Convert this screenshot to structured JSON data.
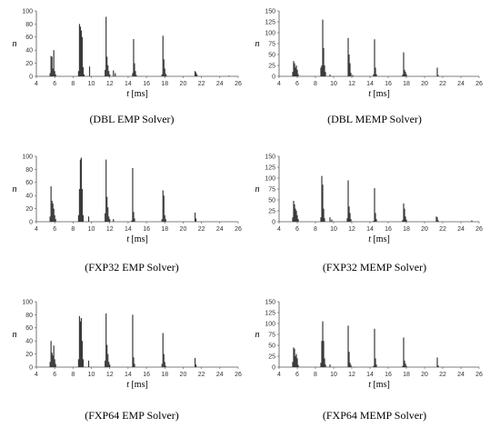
{
  "chart_data": [
    {
      "type": "bar",
      "caption": "(DBL EMP Solver)",
      "xlabel": "t",
      "xunit": "[ms]",
      "ylabel": "n",
      "xlim": [
        4,
        26
      ],
      "xticks": [
        4,
        6,
        8,
        10,
        12,
        14,
        16,
        18,
        20,
        22,
        24,
        26
      ],
      "ylim": [
        0,
        100
      ],
      "yticks": [
        0,
        20,
        40,
        60,
        80,
        100
      ],
      "bars": [
        [
          5.5,
          5
        ],
        [
          5.6,
          31
        ],
        [
          5.7,
          30
        ],
        [
          5.8,
          12
        ],
        [
          5.9,
          40
        ],
        [
          6.0,
          8
        ],
        [
          6.1,
          3
        ],
        [
          8.6,
          8
        ],
        [
          8.7,
          80
        ],
        [
          8.8,
          76
        ],
        [
          8.9,
          70
        ],
        [
          9.0,
          60
        ],
        [
          9.1,
          14
        ],
        [
          9.2,
          3
        ],
        [
          9.8,
          15
        ],
        [
          11.5,
          10
        ],
        [
          11.6,
          91
        ],
        [
          11.7,
          30
        ],
        [
          11.8,
          17
        ],
        [
          11.9,
          8
        ],
        [
          12.0,
          3
        ],
        [
          12.4,
          9
        ],
        [
          12.6,
          5
        ],
        [
          14.5,
          5
        ],
        [
          14.6,
          57
        ],
        [
          14.7,
          20
        ],
        [
          14.8,
          8
        ],
        [
          14.9,
          2
        ],
        [
          17.7,
          3
        ],
        [
          17.8,
          62
        ],
        [
          17.9,
          26
        ],
        [
          18.0,
          12
        ],
        [
          18.1,
          4
        ],
        [
          18.2,
          1
        ],
        [
          21.3,
          8
        ],
        [
          21.4,
          6
        ],
        [
          21.5,
          3
        ],
        [
          25.0,
          1
        ]
      ]
    },
    {
      "type": "bar",
      "caption": "(DBL MEMP Solver)",
      "xlabel": "t",
      "xunit": "[ms]",
      "ylabel": "n",
      "xlim": [
        4,
        26
      ],
      "xticks": [
        4,
        6,
        8,
        10,
        12,
        14,
        16,
        18,
        20,
        22,
        24,
        26
      ],
      "ylim": [
        0,
        150
      ],
      "yticks": [
        0,
        25,
        50,
        75,
        100,
        125,
        150
      ],
      "bars": [
        [
          5.5,
          10
        ],
        [
          5.6,
          35
        ],
        [
          5.7,
          30
        ],
        [
          5.8,
          20
        ],
        [
          5.9,
          25
        ],
        [
          6.0,
          15
        ],
        [
          6.1,
          5
        ],
        [
          8.6,
          20
        ],
        [
          8.7,
          25
        ],
        [
          8.8,
          130
        ],
        [
          8.9,
          65
        ],
        [
          9.0,
          25
        ],
        [
          9.1,
          10
        ],
        [
          9.6,
          4
        ],
        [
          11.6,
          88
        ],
        [
          11.7,
          50
        ],
        [
          11.8,
          30
        ],
        [
          11.9,
          8
        ],
        [
          12.1,
          3
        ],
        [
          14.4,
          5
        ],
        [
          14.5,
          85
        ],
        [
          14.6,
          20
        ],
        [
          14.7,
          5
        ],
        [
          17.6,
          4
        ],
        [
          17.7,
          55
        ],
        [
          17.8,
          15
        ],
        [
          17.9,
          10
        ],
        [
          18.0,
          5
        ],
        [
          21.4,
          20
        ],
        [
          21.5,
          3
        ]
      ]
    },
    {
      "type": "bar",
      "caption": "(FXP32 EMP Solver)",
      "xlabel": "t",
      "xunit": "[ms]",
      "ylabel": "n",
      "xlim": [
        4,
        26
      ],
      "xticks": [
        4,
        6,
        8,
        10,
        12,
        14,
        16,
        18,
        20,
        22,
        24,
        26
      ],
      "ylim": [
        0,
        100
      ],
      "yticks": [
        0,
        20,
        40,
        60,
        80,
        100
      ],
      "bars": [
        [
          5.5,
          8
        ],
        [
          5.6,
          54
        ],
        [
          5.7,
          32
        ],
        [
          5.8,
          28
        ],
        [
          5.9,
          20
        ],
        [
          6.0,
          10
        ],
        [
          6.1,
          4
        ],
        [
          8.6,
          10
        ],
        [
          8.7,
          50
        ],
        [
          8.8,
          95
        ],
        [
          8.9,
          98
        ],
        [
          9.0,
          50
        ],
        [
          9.1,
          10
        ],
        [
          9.7,
          8
        ],
        [
          11.5,
          13
        ],
        [
          11.6,
          95
        ],
        [
          11.7,
          38
        ],
        [
          11.8,
          22
        ],
        [
          11.9,
          8
        ],
        [
          12.0,
          4
        ],
        [
          12.4,
          4
        ],
        [
          14.4,
          2
        ],
        [
          14.5,
          82
        ],
        [
          14.6,
          15
        ],
        [
          14.7,
          5
        ],
        [
          17.7,
          4
        ],
        [
          17.8,
          48
        ],
        [
          17.9,
          40
        ],
        [
          18.0,
          10
        ],
        [
          18.1,
          4
        ],
        [
          21.3,
          14
        ],
        [
          21.4,
          5
        ]
      ]
    },
    {
      "type": "bar",
      "caption": "(FXP32 MEMP Solver)",
      "xlabel": "t",
      "xunit": "[ms]",
      "ylabel": "n",
      "xlim": [
        4,
        26
      ],
      "xticks": [
        4,
        6,
        8,
        10,
        12,
        14,
        16,
        18,
        20,
        22,
        24,
        26
      ],
      "ylim": [
        0,
        150
      ],
      "yticks": [
        0,
        25,
        50,
        75,
        100,
        125,
        150
      ],
      "bars": [
        [
          5.5,
          10
        ],
        [
          5.6,
          48
        ],
        [
          5.7,
          40
        ],
        [
          5.8,
          30
        ],
        [
          5.9,
          25
        ],
        [
          6.0,
          15
        ],
        [
          6.1,
          6
        ],
        [
          8.6,
          10
        ],
        [
          8.7,
          105
        ],
        [
          8.8,
          85
        ],
        [
          8.9,
          30
        ],
        [
          9.0,
          8
        ],
        [
          9.6,
          10
        ],
        [
          9.8,
          5
        ],
        [
          11.5,
          8
        ],
        [
          11.6,
          95
        ],
        [
          11.7,
          35
        ],
        [
          11.8,
          20
        ],
        [
          11.9,
          6
        ],
        [
          14.4,
          2
        ],
        [
          14.5,
          77
        ],
        [
          14.6,
          20
        ],
        [
          14.7,
          6
        ],
        [
          17.6,
          4
        ],
        [
          17.7,
          42
        ],
        [
          17.8,
          30
        ],
        [
          17.9,
          12
        ],
        [
          18.0,
          5
        ],
        [
          21.3,
          12
        ],
        [
          21.4,
          10
        ],
        [
          21.5,
          3
        ],
        [
          25.2,
          3
        ]
      ]
    },
    {
      "type": "bar",
      "caption": "(FXP64 EMP Solver)",
      "xlabel": "t",
      "xunit": "[ms]",
      "ylabel": "n",
      "xlim": [
        4,
        26
      ],
      "xticks": [
        4,
        6,
        8,
        10,
        12,
        14,
        16,
        18,
        20,
        22,
        24,
        26
      ],
      "ylim": [
        0,
        100
      ],
      "yticks": [
        0,
        20,
        40,
        60,
        80,
        100
      ],
      "bars": [
        [
          5.5,
          8
        ],
        [
          5.6,
          40
        ],
        [
          5.7,
          22
        ],
        [
          5.8,
          18
        ],
        [
          5.9,
          33
        ],
        [
          6.0,
          12
        ],
        [
          6.1,
          5
        ],
        [
          8.6,
          12
        ],
        [
          8.7,
          78
        ],
        [
          8.8,
          70
        ],
        [
          8.9,
          75
        ],
        [
          9.0,
          40
        ],
        [
          9.1,
          12
        ],
        [
          9.7,
          10
        ],
        [
          11.5,
          10
        ],
        [
          11.6,
          82
        ],
        [
          11.7,
          34
        ],
        [
          11.8,
          20
        ],
        [
          11.9,
          8
        ],
        [
          12.0,
          4
        ],
        [
          14.5,
          80
        ],
        [
          14.6,
          15
        ],
        [
          14.7,
          5
        ],
        [
          17.7,
          5
        ],
        [
          17.8,
          52
        ],
        [
          17.9,
          20
        ],
        [
          18.0,
          8
        ],
        [
          18.1,
          2
        ],
        [
          21.3,
          14
        ],
        [
          21.4,
          4
        ]
      ]
    },
    {
      "type": "bar",
      "caption": "(FXP64 MEMP Solver)",
      "xlabel": "t",
      "xunit": "[ms]",
      "ylabel": "n",
      "xlim": [
        4,
        26
      ],
      "xticks": [
        4,
        6,
        8,
        10,
        12,
        14,
        16,
        18,
        20,
        22,
        24,
        26
      ],
      "ylim": [
        0,
        150
      ],
      "yticks": [
        0,
        25,
        50,
        75,
        100,
        125,
        150
      ],
      "bars": [
        [
          5.5,
          12
        ],
        [
          5.6,
          45
        ],
        [
          5.7,
          42
        ],
        [
          5.8,
          25
        ],
        [
          5.9,
          30
        ],
        [
          6.0,
          20
        ],
        [
          6.1,
          5
        ],
        [
          8.6,
          10
        ],
        [
          8.7,
          60
        ],
        [
          8.8,
          105
        ],
        [
          8.9,
          60
        ],
        [
          9.0,
          20
        ],
        [
          9.1,
          6
        ],
        [
          9.6,
          6
        ],
        [
          11.6,
          95
        ],
        [
          11.7,
          35
        ],
        [
          11.8,
          10
        ],
        [
          11.9,
          5
        ],
        [
          14.4,
          3
        ],
        [
          14.5,
          88
        ],
        [
          14.6,
          20
        ],
        [
          14.7,
          6
        ],
        [
          17.6,
          3
        ],
        [
          17.7,
          68
        ],
        [
          17.8,
          15
        ],
        [
          17.9,
          8
        ],
        [
          18.0,
          3
        ],
        [
          21.4,
          22
        ],
        [
          21.5,
          4
        ]
      ]
    }
  ]
}
